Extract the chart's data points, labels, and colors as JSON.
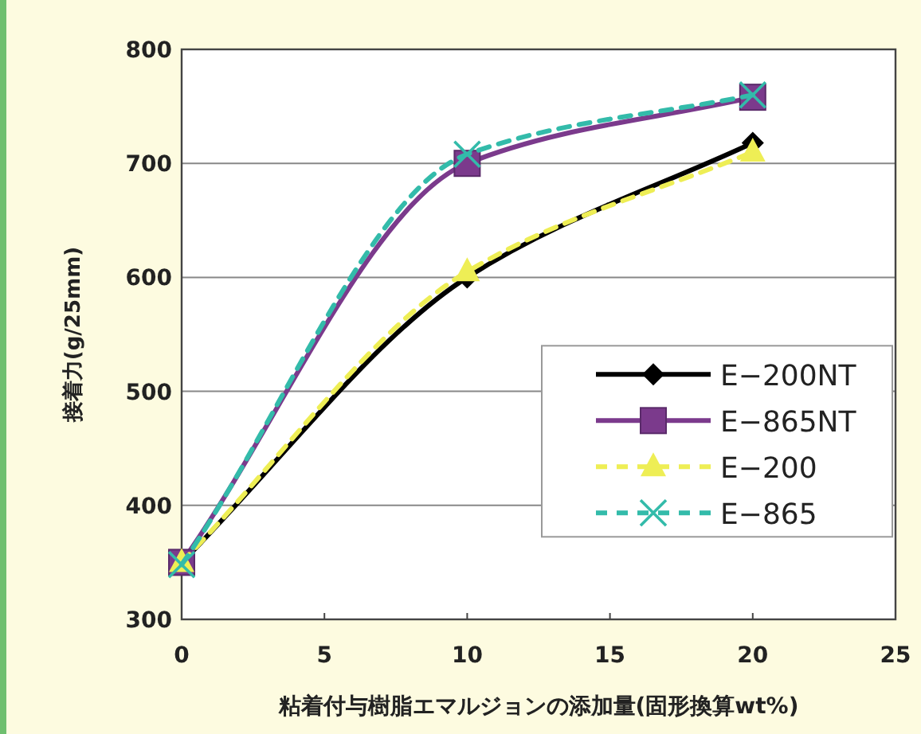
{
  "chart_data": {
    "type": "line",
    "xlabel": "粘着付与樹脂エマルジョンの添加量(固形換算wt%)",
    "ylabel": "接着力(g/25mm)",
    "x": [
      0,
      10,
      20
    ],
    "series": [
      {
        "name": "E−200NT",
        "color": "#000000",
        "values": [
          350,
          600,
          718
        ],
        "marker": "diamond",
        "line_style": "solid"
      },
      {
        "name": "E−865NT",
        "color": "#7b3a8c",
        "values": [
          350,
          700,
          758
        ],
        "marker": "square",
        "line_style": "solid"
      },
      {
        "name": "E−200",
        "color": "#eeee55",
        "values": [
          350,
          605,
          710
        ],
        "marker": "triangle",
        "line_style": "dashed"
      },
      {
        "name": "E−865",
        "color": "#33bbaa",
        "values": [
          348,
          708,
          760
        ],
        "marker": "cross",
        "line_style": "dashed"
      }
    ],
    "xlim": [
      0,
      25
    ],
    "xticks": [
      0,
      5,
      10,
      15,
      20,
      25
    ],
    "ylim": [
      300,
      800
    ],
    "yticks": [
      300,
      400,
      500,
      600,
      700,
      800
    ],
    "grid": "y",
    "legend": "right"
  }
}
